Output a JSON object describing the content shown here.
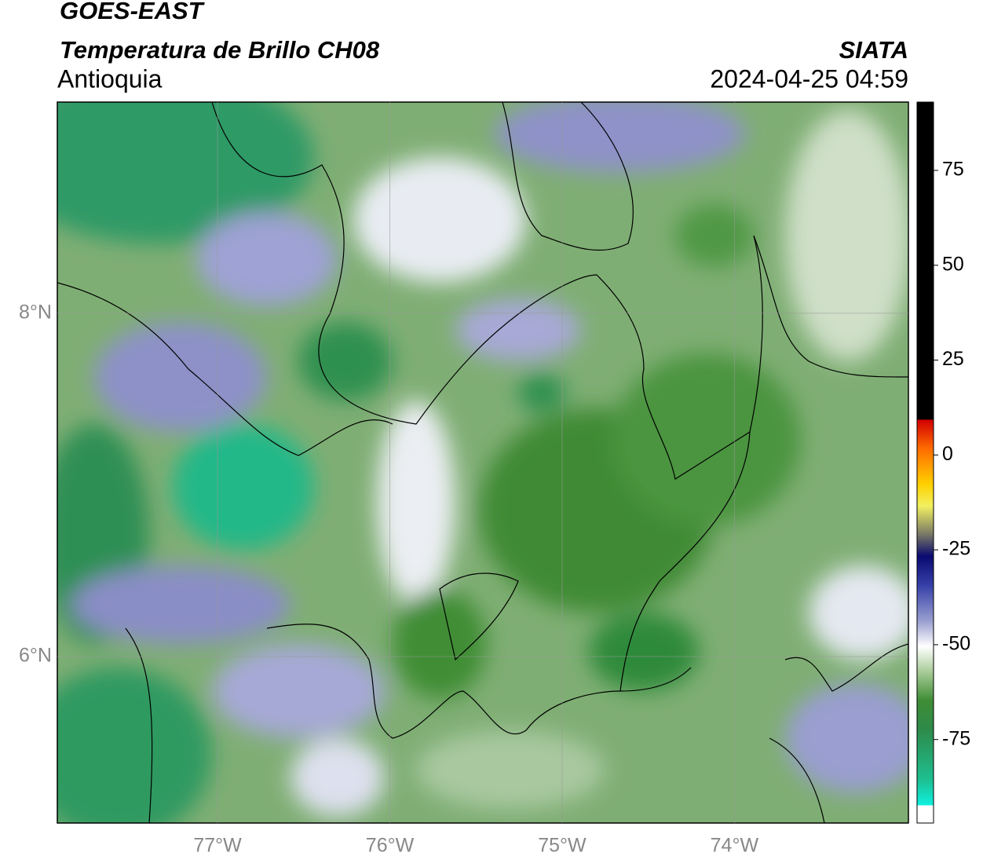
{
  "header": {
    "title": "GOES-EAST",
    "subtitle": "Temperatura de Brillo CH08",
    "region": "Antioquia",
    "source": "SIATA",
    "datetime": "2024-04-25 04:59"
  },
  "map": {
    "xlim": [
      -77.93,
      -72.99
    ],
    "ylim": [
      5.03,
      9.23
    ],
    "xticks": [
      {
        "value": -77,
        "label": "77°W"
      },
      {
        "value": -76,
        "label": "76°W"
      },
      {
        "value": -75,
        "label": "75°W"
      },
      {
        "value": -74,
        "label": "74°W"
      }
    ],
    "yticks": [
      {
        "value": 8,
        "label": "8°N"
      },
      {
        "value": 6,
        "label": "6°N"
      }
    ],
    "grid": true
  },
  "colorbar": {
    "lim": [
      -97,
      93
    ],
    "ticks": [
      75,
      50,
      25,
      0,
      -25,
      -50,
      -75
    ]
  }
}
